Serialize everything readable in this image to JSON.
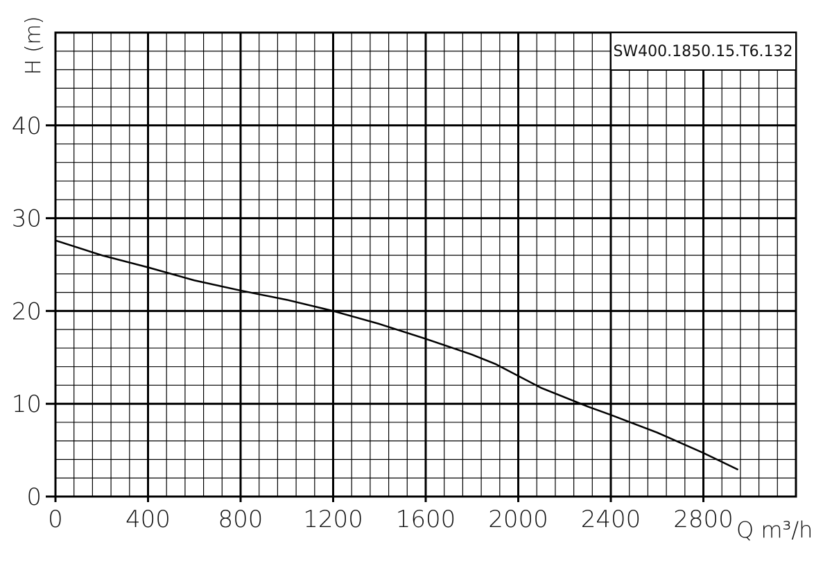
{
  "chart_data": {
    "type": "line",
    "annotation": "SW400.1850.15.T6.132",
    "x_label": "Q m³/h",
    "y_label": "H (m)",
    "x": [
      0,
      200,
      400,
      600,
      800,
      1000,
      1200,
      1400,
      1600,
      1800,
      1900,
      2000,
      2100,
      2200,
      2300,
      2400,
      2600,
      2800,
      2950
    ],
    "series": [
      {
        "color": "#000000",
        "values": [
          27.6,
          26.0,
          24.7,
          23.3,
          22.2,
          21.2,
          20.0,
          18.6,
          17.0,
          15.3,
          14.3,
          13.0,
          11.7,
          10.7,
          9.7,
          8.8,
          6.9,
          4.7,
          2.9
        ]
      }
    ],
    "xlim": [
      0,
      3200
    ],
    "ylim": [
      0,
      50
    ],
    "xticks": [
      0,
      400,
      800,
      1200,
      1600,
      2000,
      2400,
      2800
    ],
    "yticks": [
      0,
      10,
      20,
      30,
      40
    ],
    "grid": true
  }
}
